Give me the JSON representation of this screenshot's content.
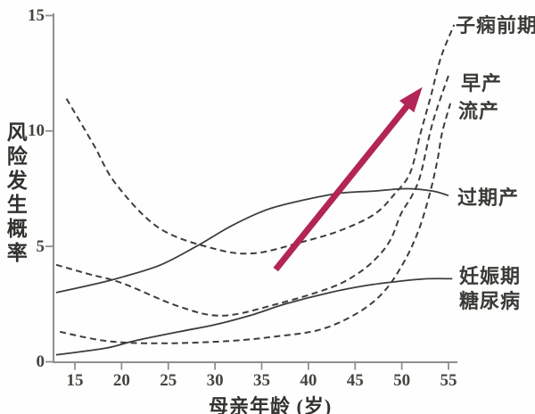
{
  "chart_data": {
    "type": "line",
    "title": "",
    "xlabel": "母亲年龄 (岁)",
    "ylabel": "风险发生概率",
    "xlim": [
      12.5,
      56.5
    ],
    "ylim": [
      0,
      15
    ],
    "x_ticks": [
      15,
      20,
      25,
      30,
      35,
      40,
      45,
      50,
      55
    ],
    "y_ticks": [
      0,
      5,
      10,
      15
    ],
    "grid": false,
    "legend_position": "labels-at-line-ends-right",
    "series": [
      {
        "key": "preeclampsia",
        "name": "子痫前期",
        "style": "dashed",
        "points": [
          [
            14.1,
            11.4
          ],
          [
            17.0,
            9.4
          ],
          [
            19.4,
            7.7
          ],
          [
            24.0,
            5.8
          ],
          [
            29.9,
            4.9
          ],
          [
            34.2,
            4.7
          ],
          [
            39.4,
            5.2
          ],
          [
            43.5,
            5.7
          ],
          [
            47.1,
            6.4
          ],
          [
            49.3,
            7.3
          ],
          [
            50.9,
            8.2
          ],
          [
            52.0,
            9.9
          ],
          [
            53.1,
            11.5
          ],
          [
            54.2,
            13.2
          ],
          [
            55.6,
            14.6
          ]
        ]
      },
      {
        "key": "preterm-birth",
        "name": "早产",
        "style": "dashed",
        "points": [
          [
            13.0,
            4.2
          ],
          [
            16.5,
            3.8
          ],
          [
            20.1,
            3.4
          ],
          [
            26.1,
            2.4
          ],
          [
            30.8,
            2.0
          ],
          [
            36.6,
            2.5
          ],
          [
            42.3,
            3.2
          ],
          [
            45.2,
            3.8
          ],
          [
            47.3,
            4.5
          ],
          [
            48.8,
            5.3
          ],
          [
            49.9,
            6.4
          ],
          [
            51.1,
            7.2
          ],
          [
            52.0,
            8.1
          ],
          [
            53.0,
            9.9
          ],
          [
            53.8,
            11.0
          ],
          [
            55.0,
            12.4
          ]
        ]
      },
      {
        "key": "miscarriage",
        "name": "流产",
        "style": "dashed",
        "points": [
          [
            13.4,
            1.3
          ],
          [
            18.4,
            0.9
          ],
          [
            24.2,
            0.8
          ],
          [
            31.5,
            0.9
          ],
          [
            36.6,
            1.1
          ],
          [
            41.3,
            1.4
          ],
          [
            45.2,
            2.1
          ],
          [
            48.0,
            3.0
          ],
          [
            50.2,
            4.3
          ],
          [
            51.8,
            5.7
          ],
          [
            53.0,
            7.3
          ],
          [
            53.8,
            8.7
          ],
          [
            54.3,
            9.9
          ],
          [
            55.2,
            11.2
          ]
        ]
      },
      {
        "key": "postterm-birth",
        "name": "过期产",
        "style": "solid",
        "points": [
          [
            13.0,
            3.0
          ],
          [
            17.5,
            3.4
          ],
          [
            20.3,
            3.7
          ],
          [
            24.2,
            4.2
          ],
          [
            28.0,
            5.0
          ],
          [
            31.8,
            5.9
          ],
          [
            35.6,
            6.6
          ],
          [
            39.4,
            7.0
          ],
          [
            43.3,
            7.3
          ],
          [
            47.1,
            7.4
          ],
          [
            50.4,
            7.5
          ],
          [
            53.3,
            7.4
          ],
          [
            55.0,
            7.2
          ]
        ]
      },
      {
        "key": "gestational-diabetes",
        "name": "妊娠期糖尿病",
        "style": "solid",
        "points": [
          [
            13.0,
            0.3
          ],
          [
            18.4,
            0.6
          ],
          [
            21.3,
            0.9
          ],
          [
            26.1,
            1.3
          ],
          [
            29.9,
            1.6
          ],
          [
            33.7,
            2.0
          ],
          [
            37.5,
            2.5
          ],
          [
            42.3,
            3.0
          ],
          [
            46.1,
            3.3
          ],
          [
            49.9,
            3.5
          ],
          [
            52.8,
            3.6
          ],
          [
            55.4,
            3.6
          ]
        ]
      }
    ],
    "annotation_arrow": {
      "from": [
        36.5,
        4.0
      ],
      "to": [
        52.2,
        11.9
      ],
      "color": "#b22556"
    },
    "colors": {
      "curve": "#3d3d3b",
      "axis": "#8f8f8f",
      "text": "#3a3a36",
      "arrow": "#b22556"
    }
  }
}
